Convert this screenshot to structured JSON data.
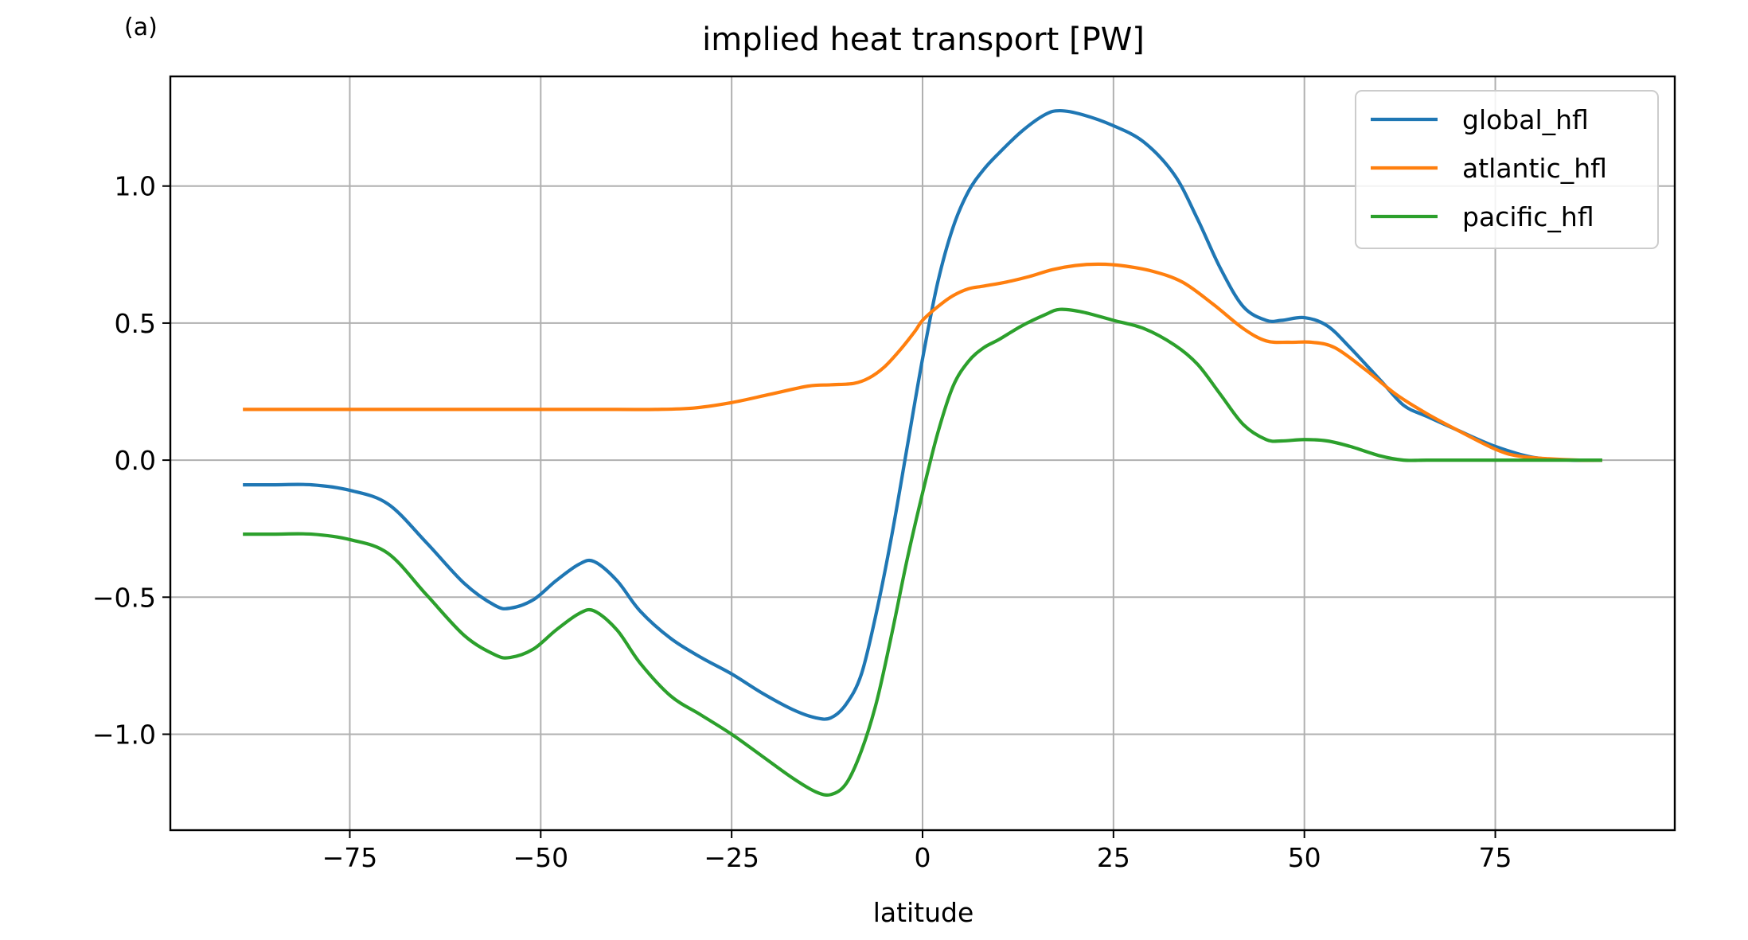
{
  "panel_label": "(a)",
  "chart_data": {
    "type": "line",
    "title": "implied heat transport [PW]",
    "xlabel": "latitude",
    "ylabel": "",
    "xlim": [
      -98.5,
      98.5
    ],
    "ylim": [
      -1.35,
      1.4
    ],
    "xticks": [
      -75,
      -50,
      -25,
      0,
      25,
      50,
      75
    ],
    "yticks": [
      -1.0,
      -0.5,
      0.0,
      0.5,
      1.0
    ],
    "xtick_labels": [
      "−75",
      "−50",
      "−25",
      "0",
      "25",
      "50",
      "75"
    ],
    "ytick_labels": [
      "−1.0",
      "−0.5",
      "0.0",
      "0.5",
      "1.0"
    ],
    "grid": true,
    "legend_position": "upper right",
    "series": [
      {
        "name": "global_hfl",
        "color": "#1f77b4",
        "x": [
          -89,
          -85,
          -80,
          -75,
          -70,
          -65,
          -60,
          -56,
          -54,
          -51,
          -48,
          -45,
          -43,
          -40,
          -37,
          -33,
          -29,
          -25,
          -21,
          -17,
          -14,
          -12,
          -10,
          -8,
          -6,
          -4,
          -2,
          0,
          2,
          4,
          6,
          8,
          10,
          13,
          16,
          18,
          21,
          25,
          29,
          33,
          36,
          39,
          42,
          45,
          47,
          50,
          53,
          56,
          60,
          63,
          66,
          70,
          75,
          80,
          85,
          89
        ],
        "y": [
          -0.09,
          -0.09,
          -0.09,
          -0.11,
          -0.16,
          -0.3,
          -0.45,
          -0.53,
          -0.54,
          -0.51,
          -0.44,
          -0.38,
          -0.37,
          -0.44,
          -0.55,
          -0.65,
          -0.72,
          -0.78,
          -0.85,
          -0.91,
          -0.94,
          -0.94,
          -0.89,
          -0.78,
          -0.55,
          -0.27,
          0.05,
          0.37,
          0.65,
          0.85,
          0.98,
          1.06,
          1.12,
          1.2,
          1.26,
          1.275,
          1.26,
          1.22,
          1.16,
          1.04,
          0.88,
          0.7,
          0.56,
          0.51,
          0.51,
          0.52,
          0.49,
          0.41,
          0.29,
          0.2,
          0.16,
          0.11,
          0.05,
          0.01,
          0.0,
          0.0
        ]
      },
      {
        "name": "atlantic_hfl",
        "color": "#ff7f0e",
        "x": [
          -89,
          -80,
          -70,
          -60,
          -50,
          -40,
          -35,
          -30,
          -25,
          -20,
          -15,
          -12,
          -9,
          -7,
          -5,
          -3,
          -1,
          0,
          2,
          4,
          6,
          8,
          11,
          14,
          17,
          20,
          23,
          26,
          30,
          34,
          38,
          42,
          45,
          48,
          51,
          54,
          58,
          62,
          66,
          70,
          75,
          78,
          82,
          86,
          89
        ],
        "y": [
          0.185,
          0.185,
          0.185,
          0.185,
          0.185,
          0.185,
          0.185,
          0.19,
          0.21,
          0.24,
          0.27,
          0.275,
          0.28,
          0.3,
          0.34,
          0.4,
          0.47,
          0.51,
          0.56,
          0.6,
          0.625,
          0.635,
          0.65,
          0.67,
          0.695,
          0.71,
          0.715,
          0.71,
          0.69,
          0.65,
          0.57,
          0.48,
          0.435,
          0.43,
          0.43,
          0.41,
          0.33,
          0.24,
          0.17,
          0.11,
          0.04,
          0.015,
          0.005,
          0.0,
          0.0
        ]
      },
      {
        "name": "pacific_hfl",
        "color": "#2ca02c",
        "x": [
          -89,
          -85,
          -80,
          -75,
          -70,
          -65,
          -60,
          -56,
          -54,
          -51,
          -48,
          -45,
          -43,
          -40,
          -37,
          -33,
          -29,
          -25,
          -21,
          -17,
          -14,
          -12,
          -10,
          -8,
          -6,
          -4,
          -2,
          0,
          2,
          4,
          6,
          8,
          10,
          13,
          16,
          18,
          21,
          25,
          29,
          33,
          36,
          39,
          42,
          45,
          47,
          50,
          53,
          56,
          60,
          63,
          66,
          70,
          75,
          80,
          85,
          89
        ],
        "y": [
          -0.27,
          -0.27,
          -0.27,
          -0.29,
          -0.34,
          -0.49,
          -0.64,
          -0.71,
          -0.72,
          -0.69,
          -0.62,
          -0.56,
          -0.55,
          -0.62,
          -0.74,
          -0.86,
          -0.93,
          -1.0,
          -1.08,
          -1.16,
          -1.21,
          -1.22,
          -1.18,
          -1.06,
          -0.88,
          -0.63,
          -0.36,
          -0.12,
          0.1,
          0.27,
          0.36,
          0.41,
          0.44,
          0.49,
          0.53,
          0.55,
          0.54,
          0.51,
          0.48,
          0.42,
          0.35,
          0.24,
          0.13,
          0.075,
          0.07,
          0.075,
          0.07,
          0.05,
          0.015,
          0.0,
          0.0,
          0.0,
          0.0,
          0.0,
          0.0,
          0.0
        ]
      }
    ]
  }
}
